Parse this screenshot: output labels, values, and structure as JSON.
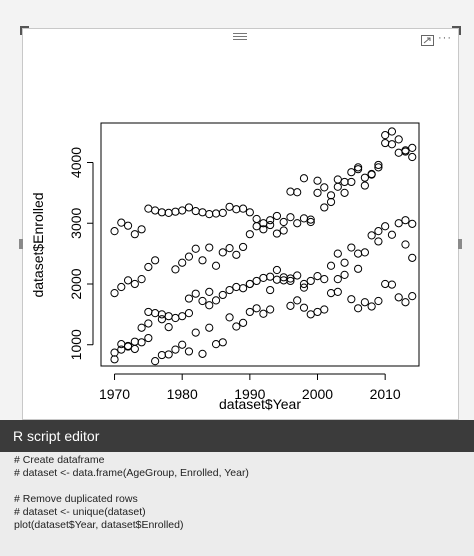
{
  "visual": {
    "header_icons": [
      "drag-grip-icon",
      "focus-mode-icon",
      "more-options-icon"
    ]
  },
  "chart_data": {
    "type": "scatter",
    "xlabel": "dataset$Year",
    "ylabel": "dataset$Enrolled",
    "xlim": [
      1968,
      2015
    ],
    "ylim": [
      650,
      4650
    ],
    "x_ticks": [
      1970,
      1980,
      1990,
      2000,
      2010
    ],
    "y_ticks": [
      1000,
      2000,
      3000,
      4000
    ],
    "marker": "open-circle",
    "grid": false,
    "series": [
      {
        "x": [
          1970,
          1971,
          1972,
          1973,
          1974,
          1975,
          1976,
          1977,
          1978,
          1979,
          1980,
          1981,
          1982,
          1983,
          1984,
          1985,
          1986,
          1987,
          1988,
          1989,
          1990,
          1991,
          1992,
          1993,
          1994,
          1995,
          1996,
          1997,
          1998,
          1999,
          2000,
          2001,
          2002,
          2003,
          2004,
          2005,
          2006,
          2007,
          2008,
          2009,
          2010,
          2011,
          2012,
          2013,
          2014
        ],
        "y": [
          2870,
          3010,
          2960,
          2820,
          2900,
          3240,
          3210,
          3180,
          3170,
          3190,
          3210,
          3260,
          3200,
          3180,
          3150,
          3160,
          3170,
          3270,
          3230,
          3240,
          3180,
          3070,
          3000,
          3050,
          3120,
          3020,
          3520,
          3510,
          3740,
          3060,
          3700,
          3590,
          3460,
          3600,
          3680,
          3840,
          3890,
          3620,
          3800,
          3920,
          4450,
          4510,
          4380,
          4200,
          4240
        ]
      },
      {
        "x": [
          1970,
          1971,
          1972,
          1973,
          1974,
          1975,
          1976,
          1977,
          1978,
          1979,
          1980,
          1981,
          1982,
          1983,
          1984,
          1985,
          1986,
          1987,
          1988,
          1989,
          1990,
          1991,
          1992,
          1993,
          1994,
          1995,
          1996,
          1997,
          1998,
          1999,
          2000,
          2001,
          2002,
          2003,
          2004,
          2005,
          2006,
          2007,
          2008,
          2009,
          2010,
          2011,
          2012,
          2013,
          2014
        ],
        "y": [
          1850,
          1950,
          2060,
          2000,
          2080,
          2280,
          2390,
          1420,
          1470,
          2240,
          2350,
          2450,
          2580,
          2390,
          2600,
          2300,
          2520,
          2590,
          2480,
          2610,
          2820,
          2950,
          2900,
          2970,
          2830,
          2880,
          3100,
          3000,
          3080,
          3020,
          3500,
          3260,
          3350,
          3720,
          3500,
          3680,
          3920,
          3750,
          3810,
          3960,
          4320,
          4300,
          4160,
          4180,
          4090
        ]
      },
      {
        "x": [
          1970,
          1971,
          1972,
          1973,
          1974,
          1975,
          1976,
          1977,
          1978,
          1979,
          1980,
          1981,
          1982,
          1983,
          1984,
          1985,
          1986,
          1987,
          1988,
          1989,
          1990,
          1991,
          1992,
          1993,
          1994,
          1995,
          1996,
          1997,
          1998,
          1999,
          2000,
          2001,
          2002,
          2003,
          2004,
          2005,
          2006,
          2007,
          2008,
          2009,
          2010,
          2011,
          2012,
          2013,
          2014
        ],
        "y": [
          870,
          1010,
          970,
          1050,
          1280,
          1540,
          1520,
          1500,
          1290,
          1440,
          1470,
          1760,
          1840,
          1720,
          1870,
          1730,
          1820,
          1900,
          1950,
          1930,
          2000,
          2050,
          2100,
          2120,
          2070,
          2110,
          2090,
          2140,
          2000,
          2050,
          2130,
          2080,
          2300,
          2500,
          2350,
          2600,
          2250,
          2520,
          2800,
          2870,
          2950,
          2810,
          3000,
          3050,
          2990
        ]
      },
      {
        "x": [
          1970,
          1971,
          1972,
          1973,
          1974,
          1975,
          1976,
          1977,
          1978,
          1979,
          1980,
          1981,
          1982,
          1983,
          1984,
          1985,
          1986,
          1987,
          1988,
          1989,
          1990,
          1991,
          1992,
          1993,
          1994,
          1995,
          1996,
          1997,
          1998,
          1999,
          2000,
          2001,
          2002,
          2003,
          2004,
          2005,
          2006,
          2007,
          2008,
          2009,
          2010,
          2011,
          2012,
          2013,
          2014
        ],
        "y": [
          760,
          920,
          980,
          930,
          1040,
          1110,
          730,
          830,
          840,
          920,
          1000,
          890,
          1200,
          850,
          1280,
          1010,
          1040,
          1450,
          1300,
          1360,
          1540,
          1600,
          1510,
          1580,
          2230,
          2060,
          1640,
          1730,
          1610,
          1500,
          1540,
          1580,
          1850,
          1870,
          2150,
          1750,
          1600,
          1700,
          1630,
          1720,
          2000,
          1990,
          1780,
          1700,
          1800
        ]
      },
      {
        "x": [
          1975,
          1981,
          1984,
          1990,
          1993,
          1996,
          1998,
          2003,
          2006,
          2009,
          2013,
          2014
        ],
        "y": [
          1350,
          1520,
          1650,
          2000,
          1900,
          2050,
          1940,
          2080,
          2500,
          2700,
          2650,
          2430
        ]
      }
    ]
  },
  "editor": {
    "title": "R script editor",
    "code_lines": [
      "# Create dataframe",
      "# dataset <- data.frame(AgeGroup, Enrolled, Year)",
      "",
      "# Remove duplicated rows",
      "# dataset <- unique(dataset)",
      "plot(dataset$Year, dataset$Enrolled)"
    ]
  }
}
